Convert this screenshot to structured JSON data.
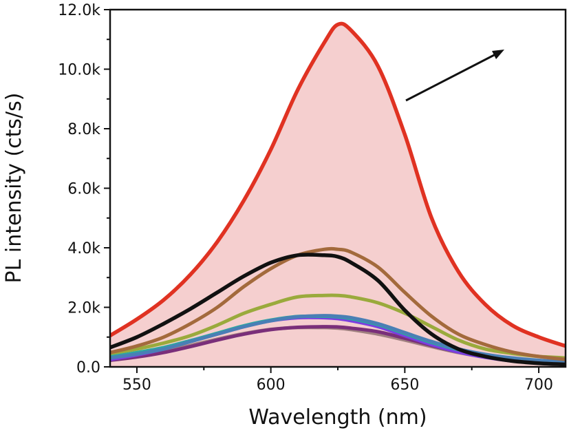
{
  "chart_data": {
    "type": "line",
    "title": "",
    "xlabel": "Wavelength (nm)",
    "ylabel": "PL intensity (cts/s)",
    "xlim": [
      540,
      710
    ],
    "ylim": [
      0,
      12000
    ],
    "x_ticks": [
      550,
      600,
      650,
      700
    ],
    "x_tick_labels": [
      "550",
      "600",
      "650",
      "700"
    ],
    "y_ticks": [
      0,
      2000,
      4000,
      6000,
      8000,
      10000,
      12000
    ],
    "y_tick_labels": [
      "0.0",
      "2.0k",
      "4.0k",
      "6.0k",
      "8.0k",
      "10.0k",
      "12.0k"
    ],
    "grid": false,
    "legend": "none",
    "series": [
      {
        "color": "#e03222",
        "filled": true,
        "fill_color": "#f5cfcf",
        "x": [
          540,
          550,
          560,
          570,
          580,
          590,
          600,
          610,
          620,
          625,
          630,
          640,
          650,
          660,
          670,
          680,
          690,
          700,
          710
        ],
        "y": [
          1050,
          1600,
          2250,
          3100,
          4200,
          5600,
          7300,
          9300,
          10900,
          11500,
          11300,
          10100,
          7800,
          5000,
          3200,
          2100,
          1400,
          1000,
          700
        ]
      },
      {
        "color": "#a36a3c",
        "x": [
          540,
          550,
          560,
          570,
          580,
          590,
          600,
          610,
          620,
          625,
          630,
          640,
          650,
          660,
          670,
          680,
          690,
          700,
          710
        ],
        "y": [
          480,
          700,
          1000,
          1450,
          2000,
          2700,
          3300,
          3750,
          3950,
          3950,
          3850,
          3350,
          2500,
          1700,
          1100,
          750,
          500,
          350,
          250
        ]
      },
      {
        "color": "#111111",
        "x": [
          540,
          550,
          560,
          570,
          580,
          590,
          600,
          610,
          620,
          625,
          630,
          640,
          650,
          660,
          670,
          680,
          690,
          700,
          710
        ],
        "y": [
          650,
          1000,
          1450,
          1950,
          2500,
          3050,
          3500,
          3750,
          3750,
          3700,
          3500,
          2900,
          1900,
          1100,
          600,
          350,
          200,
          120,
          80
        ]
      },
      {
        "color": "#9aaa3c",
        "x": [
          540,
          550,
          560,
          570,
          580,
          590,
          600,
          610,
          620,
          625,
          630,
          640,
          650,
          660,
          670,
          680,
          690,
          700,
          710
        ],
        "y": [
          450,
          600,
          800,
          1050,
          1400,
          1800,
          2100,
          2350,
          2400,
          2400,
          2350,
          2150,
          1800,
          1350,
          900,
          600,
          450,
          350,
          300
        ]
      },
      {
        "color": "#4a7fb5",
        "x": [
          540,
          550,
          560,
          570,
          580,
          590,
          600,
          610,
          620,
          625,
          630,
          640,
          650,
          660,
          670,
          680,
          690,
          700,
          710
        ],
        "y": [
          300,
          430,
          600,
          850,
          1100,
          1350,
          1550,
          1680,
          1720,
          1700,
          1650,
          1450,
          1150,
          850,
          600,
          420,
          300,
          220,
          160
        ]
      },
      {
        "color": "#2aa8a0",
        "x": [
          540,
          550,
          560,
          570,
          580,
          590,
          600,
          610,
          620,
          625,
          630,
          640,
          650,
          660,
          670,
          680,
          690,
          700,
          710
        ],
        "y": [
          340,
          480,
          650,
          880,
          1130,
          1380,
          1570,
          1690,
          1700,
          1680,
          1620,
          1420,
          1120,
          820,
          580,
          400,
          280,
          200,
          150
        ]
      },
      {
        "color": "#7b3fe0",
        "x": [
          540,
          550,
          560,
          570,
          580,
          590,
          600,
          610,
          620,
          625,
          630,
          640,
          650,
          660,
          670,
          680,
          690,
          700,
          710
        ],
        "y": [
          250,
          400,
          600,
          850,
          1100,
          1350,
          1550,
          1650,
          1650,
          1620,
          1550,
          1350,
          1050,
          750,
          500,
          320,
          200,
          130,
          90
        ]
      },
      {
        "color": "#7a2f7a",
        "x": [
          540,
          550,
          560,
          570,
          580,
          590,
          600,
          610,
          620,
          625,
          630,
          640,
          650,
          660,
          670,
          680,
          690,
          700,
          710
        ],
        "y": [
          220,
          330,
          480,
          680,
          900,
          1100,
          1250,
          1330,
          1350,
          1340,
          1300,
          1180,
          960,
          720,
          500,
          350,
          240,
          170,
          120
        ]
      },
      {
        "color": "#a08080",
        "x": [
          540,
          550,
          560,
          570,
          580,
          590,
          600,
          610,
          620,
          625,
          630,
          640,
          650,
          660,
          670,
          680,
          690,
          700,
          710
        ],
        "y": [
          260,
          370,
          520,
          720,
          930,
          1120,
          1260,
          1320,
          1320,
          1300,
          1250,
          1100,
          900,
          680,
          480,
          330,
          230,
          160,
          120
        ]
      }
    ],
    "inset": {
      "type": "image",
      "description_hidden": true,
      "colors": [
        "#7a1208",
        "#8c1a0c",
        "#a0281a",
        "#e53a2e"
      ]
    }
  }
}
